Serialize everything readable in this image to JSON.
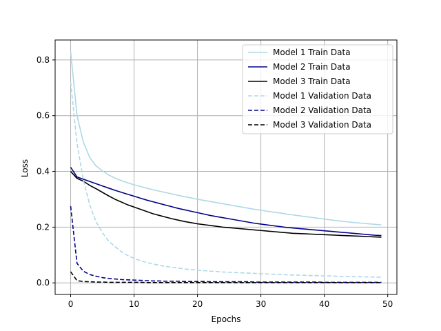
{
  "chart_data": {
    "type": "line",
    "xlabel": "Epochs",
    "ylabel": "Loss",
    "xlim": [
      -2.45,
      51.45
    ],
    "ylim": [
      -0.0415,
      0.8715
    ],
    "xticks": [
      0,
      10,
      20,
      30,
      40,
      50
    ],
    "yticks": [
      0.0,
      0.2,
      0.4,
      0.6,
      0.8
    ],
    "xtick_labels": [
      "0",
      "10",
      "20",
      "30",
      "40",
      "50"
    ],
    "ytick_labels": [
      "0.0",
      "0.2",
      "0.4",
      "0.6",
      "0.8"
    ],
    "grid": true,
    "legend_position": "upper right",
    "x": [
      0,
      1,
      2,
      3,
      4,
      5,
      6,
      7,
      8,
      9,
      10,
      11,
      12,
      13,
      14,
      15,
      16,
      17,
      18,
      19,
      20,
      21,
      22,
      23,
      24,
      25,
      26,
      27,
      28,
      29,
      30,
      31,
      32,
      33,
      34,
      35,
      36,
      37,
      38,
      39,
      40,
      41,
      42,
      43,
      44,
      45,
      46,
      47,
      48,
      49
    ],
    "series": [
      {
        "name": "Model 1 Train Data",
        "color": "#add8e6",
        "linestyle": "solid",
        "values": [
          0.83,
          0.6,
          0.505,
          0.45,
          0.42,
          0.402,
          0.387,
          0.376,
          0.367,
          0.359,
          0.352,
          0.346,
          0.34,
          0.334,
          0.329,
          0.324,
          0.319,
          0.314,
          0.309,
          0.305,
          0.3,
          0.296,
          0.292,
          0.288,
          0.284,
          0.28,
          0.276,
          0.272,
          0.268,
          0.264,
          0.261,
          0.257,
          0.254,
          0.251,
          0.247,
          0.244,
          0.241,
          0.238,
          0.235,
          0.232,
          0.229,
          0.226,
          0.223,
          0.221,
          0.218,
          0.216,
          0.214,
          0.212,
          0.21,
          0.208
        ]
      },
      {
        "name": "Model 2 Train Data",
        "color": "#00008b",
        "linestyle": "solid",
        "values": [
          0.415,
          0.38,
          0.372,
          0.364,
          0.356,
          0.348,
          0.34,
          0.332,
          0.325,
          0.318,
          0.311,
          0.304,
          0.297,
          0.291,
          0.285,
          0.279,
          0.273,
          0.267,
          0.262,
          0.257,
          0.252,
          0.247,
          0.242,
          0.238,
          0.234,
          0.23,
          0.226,
          0.222,
          0.218,
          0.214,
          0.211,
          0.208,
          0.205,
          0.202,
          0.199,
          0.197,
          0.195,
          0.193,
          0.191,
          0.189,
          0.187,
          0.185,
          0.183,
          0.181,
          0.179,
          0.177,
          0.175,
          0.173,
          0.171,
          0.17
        ]
      },
      {
        "name": "Model 3 Train Data",
        "color": "#000000",
        "linestyle": "solid",
        "values": [
          0.4,
          0.375,
          0.365,
          0.35,
          0.338,
          0.325,
          0.312,
          0.3,
          0.29,
          0.28,
          0.272,
          0.264,
          0.256,
          0.248,
          0.242,
          0.236,
          0.23,
          0.225,
          0.22,
          0.216,
          0.212,
          0.209,
          0.206,
          0.203,
          0.2,
          0.198,
          0.196,
          0.194,
          0.192,
          0.19,
          0.188,
          0.186,
          0.184,
          0.182,
          0.18,
          0.178,
          0.177,
          0.176,
          0.175,
          0.174,
          0.173,
          0.172,
          0.171,
          0.17,
          0.169,
          0.168,
          0.167,
          0.166,
          0.165,
          0.164
        ]
      },
      {
        "name": "Model 1 Validation Data",
        "color": "#add8e6",
        "linestyle": "dashed",
        "values": [
          0.72,
          0.5,
          0.37,
          0.28,
          0.22,
          0.18,
          0.15,
          0.13,
          0.112,
          0.098,
          0.088,
          0.08,
          0.073,
          0.068,
          0.063,
          0.059,
          0.056,
          0.053,
          0.05,
          0.048,
          0.046,
          0.044,
          0.042,
          0.041,
          0.039,
          0.038,
          0.037,
          0.036,
          0.035,
          0.034,
          0.033,
          0.032,
          0.031,
          0.03,
          0.029,
          0.028,
          0.028,
          0.027,
          0.026,
          0.026,
          0.025,
          0.025,
          0.024,
          0.023,
          0.023,
          0.022,
          0.022,
          0.021,
          0.021,
          0.02
        ]
      },
      {
        "name": "Model 2 Validation Data",
        "color": "#00008b",
        "linestyle": "dashed",
        "values": [
          0.275,
          0.07,
          0.042,
          0.03,
          0.024,
          0.019,
          0.016,
          0.014,
          0.012,
          0.011,
          0.01,
          0.009,
          0.008,
          0.007,
          0.007,
          0.006,
          0.006,
          0.006,
          0.005,
          0.005,
          0.005,
          0.005,
          0.004,
          0.004,
          0.004,
          0.004,
          0.004,
          0.004,
          0.004,
          0.003,
          0.003,
          0.003,
          0.003,
          0.003,
          0.003,
          0.003,
          0.003,
          0.003,
          0.003,
          0.003,
          0.002,
          0.002,
          0.002,
          0.002,
          0.002,
          0.002,
          0.002,
          0.002,
          0.002,
          0.002
        ]
      },
      {
        "name": "Model 3 Validation Data",
        "color": "#000000",
        "linestyle": "dashed",
        "values": [
          0.04,
          0.008,
          0.005,
          0.004,
          0.003,
          0.003,
          0.002,
          0.002,
          0.002,
          0.002,
          0.002,
          0.002,
          0.001,
          0.001,
          0.001,
          0.001,
          0.001,
          0.001,
          0.001,
          0.001,
          0.001,
          0.001,
          0.001,
          0.001,
          0.001,
          0.001,
          0.001,
          0.001,
          0.001,
          0.001,
          0.001,
          0.001,
          0.001,
          0.001,
          0.001,
          0.001,
          0.001,
          0.001,
          0.001,
          0.001,
          0.001,
          0.001,
          0.001,
          0.001,
          0.001,
          0.001,
          0.001,
          0.001,
          0.001,
          0.001
        ]
      }
    ]
  }
}
